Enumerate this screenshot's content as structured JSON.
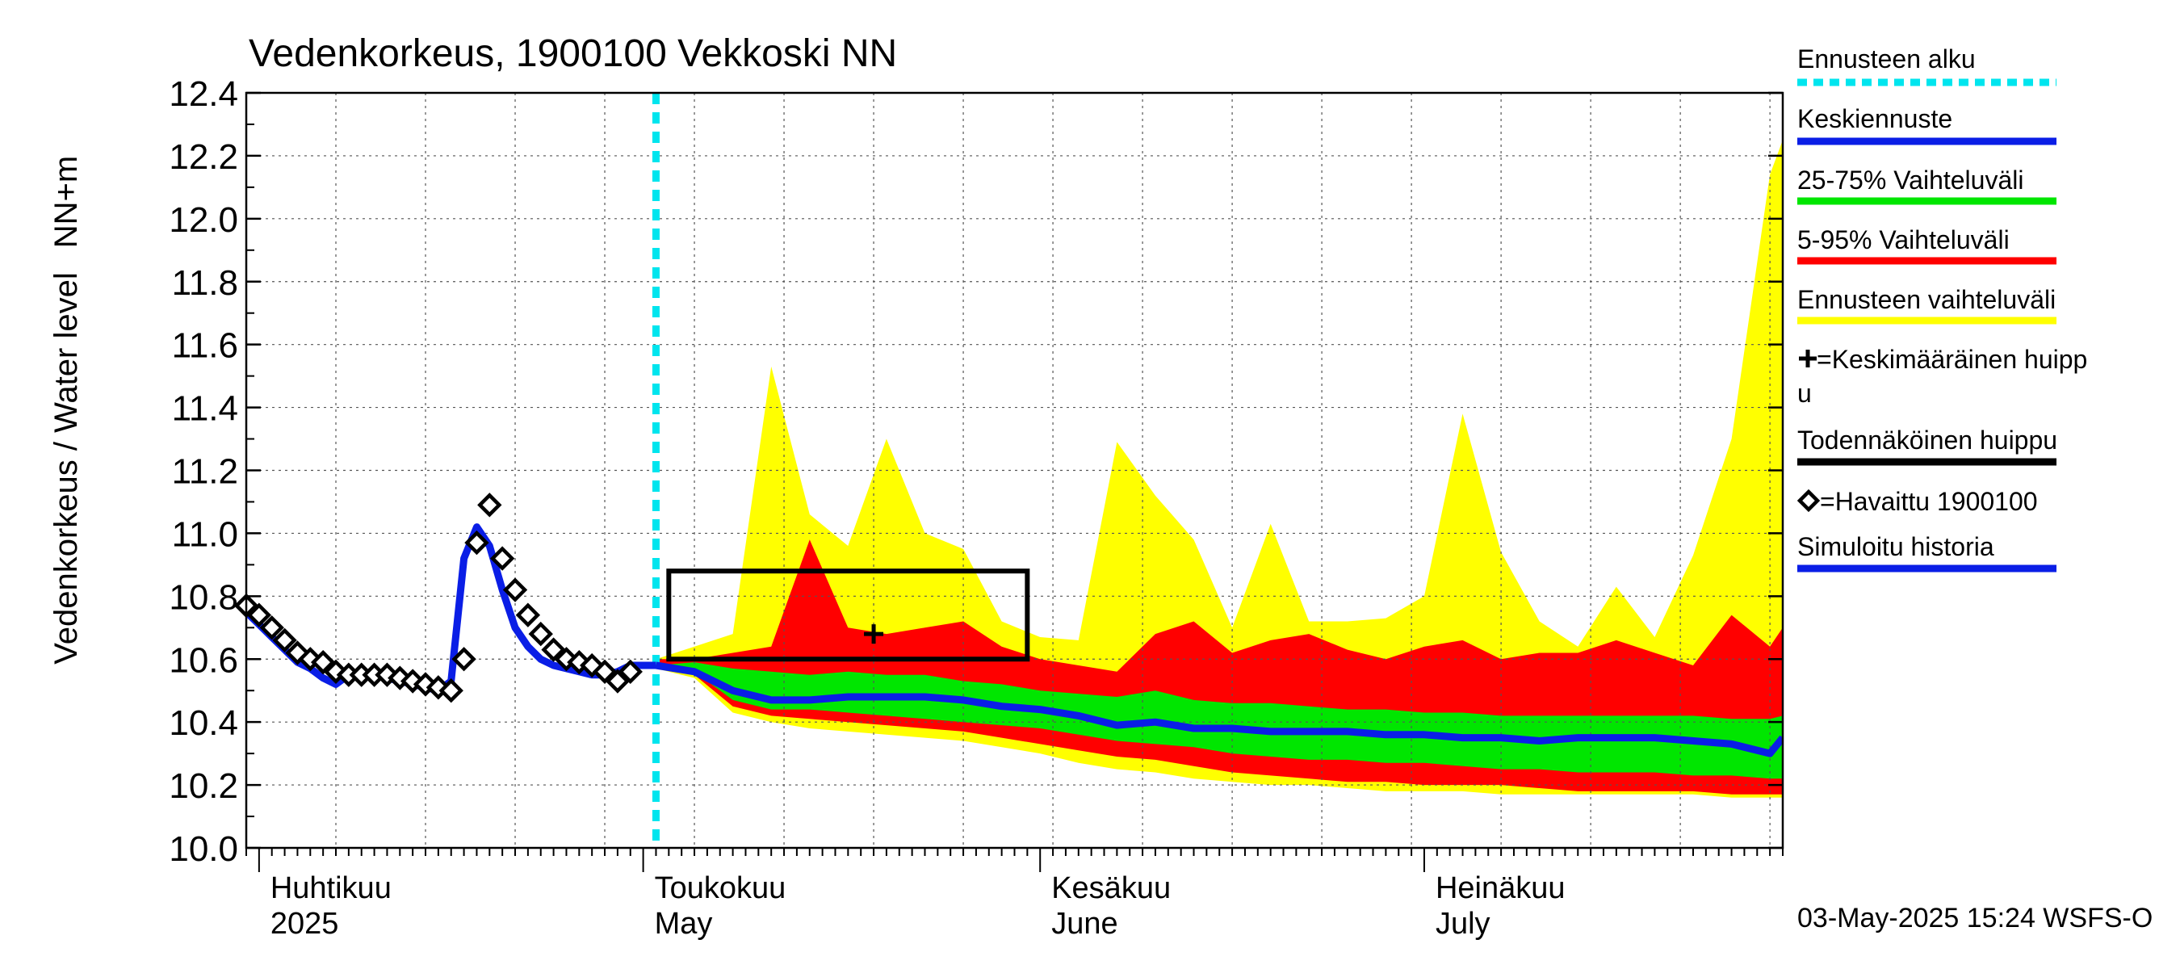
{
  "chart_data": {
    "type": "area",
    "title": "Vedenkorkeus, 1900100 Vekkoski NN",
    "ylabel_left": "Vedenkorkeus / Water level",
    "ylabel_right": "NN+m",
    "ylim": [
      10.0,
      12.4
    ],
    "yticks": [
      "10.0",
      "10.2",
      "10.4",
      "10.6",
      "10.8",
      "11.0",
      "11.2",
      "11.4",
      "11.6",
      "11.8",
      "12.0",
      "12.2",
      "12.4"
    ],
    "grid": true,
    "legend_position": "right",
    "month_labels": [
      {
        "fi": "Huhtikuu",
        "en": "2025",
        "date": "2025-04-01"
      },
      {
        "fi": "Toukokuu",
        "en": "May",
        "date": "2025-05-01"
      },
      {
        "fi": "Kesäkuu",
        "en": "June",
        "date": "2025-06-01"
      },
      {
        "fi": "Heinäkuu",
        "en": "July",
        "date": "2025-07-01"
      }
    ],
    "x_start": "2025-03-31",
    "x_end": "2025-07-29",
    "forecast_start": "2025-05-02",
    "timestamp": "03-May-2025 15:24 WSFS-O",
    "colors": {
      "forecast_start": "#00e5ee",
      "mean_forecast": "#0a1ee6",
      "band_25_75": "#00e600",
      "band_5_95": "#ff0000",
      "band_full": "#ffff00",
      "peak_box": "#000000",
      "simulated": "#0a1ee6",
      "observed": "#000000"
    },
    "legend": [
      {
        "label": "Ennusteen alku",
        "style": "dotted-cyan"
      },
      {
        "label": "Keskiennuste",
        "style": "line-blue"
      },
      {
        "label": "25-75% Vaihteluväli",
        "style": "line-green"
      },
      {
        "label": "5-95% Vaihteluväli",
        "style": "line-red"
      },
      {
        "label": "Ennusteen vaihteluväli",
        "style": "line-yellow"
      },
      {
        "label": "=Keskimääräinen huipp",
        "label2": "u",
        "style": "plus"
      },
      {
        "label": "Todennäköinen huippu",
        "style": "line-black"
      },
      {
        "label": "=Havaittu 1900100",
        "style": "diamond"
      },
      {
        "label": "Simuloitu historia",
        "style": "line-blue"
      }
    ],
    "simulated_history": [
      [
        "2025-03-31",
        10.75
      ],
      [
        "2025-04-01",
        10.71
      ],
      [
        "2025-04-02",
        10.67
      ],
      [
        "2025-04-03",
        10.63
      ],
      [
        "2025-04-04",
        10.59
      ],
      [
        "2025-04-05",
        10.57
      ],
      [
        "2025-04-06",
        10.54
      ],
      [
        "2025-04-07",
        10.52
      ],
      [
        "2025-04-08",
        10.55
      ],
      [
        "2025-04-09",
        10.55
      ],
      [
        "2025-04-10",
        10.55
      ],
      [
        "2025-04-11",
        10.54
      ],
      [
        "2025-04-12",
        10.53
      ],
      [
        "2025-04-13",
        10.52
      ],
      [
        "2025-04-14",
        10.51
      ],
      [
        "2025-04-15",
        10.5
      ],
      [
        "2025-04-16",
        10.53
      ],
      [
        "2025-04-17",
        10.92
      ],
      [
        "2025-04-18",
        11.02
      ],
      [
        "2025-04-19",
        10.96
      ],
      [
        "2025-04-20",
        10.82
      ],
      [
        "2025-04-21",
        10.7
      ],
      [
        "2025-04-22",
        10.64
      ],
      [
        "2025-04-23",
        10.6
      ],
      [
        "2025-04-24",
        10.58
      ],
      [
        "2025-04-25",
        10.57
      ],
      [
        "2025-04-26",
        10.56
      ],
      [
        "2025-04-27",
        10.55
      ],
      [
        "2025-04-28",
        10.55
      ],
      [
        "2025-04-29",
        10.56
      ],
      [
        "2025-04-30",
        10.58
      ],
      [
        "2025-05-01",
        10.58
      ],
      [
        "2025-05-02",
        10.58
      ]
    ],
    "observed": [
      [
        "2025-03-31",
        10.77
      ],
      [
        "2025-04-01",
        10.74
      ],
      [
        "2025-04-02",
        10.7
      ],
      [
        "2025-04-03",
        10.66
      ],
      [
        "2025-04-04",
        10.62
      ],
      [
        "2025-04-05",
        10.6
      ],
      [
        "2025-04-06",
        10.59
      ],
      [
        "2025-04-07",
        10.56
      ],
      [
        "2025-04-08",
        10.55
      ],
      [
        "2025-04-09",
        10.55
      ],
      [
        "2025-04-10",
        10.55
      ],
      [
        "2025-04-11",
        10.55
      ],
      [
        "2025-04-12",
        10.54
      ],
      [
        "2025-04-13",
        10.53
      ],
      [
        "2025-04-14",
        10.52
      ],
      [
        "2025-04-15",
        10.51
      ],
      [
        "2025-04-16",
        10.5
      ],
      [
        "2025-04-17",
        10.6
      ],
      [
        "2025-04-18",
        10.97
      ],
      [
        "2025-04-19",
        11.09
      ],
      [
        "2025-04-20",
        10.92
      ],
      [
        "2025-04-21",
        10.82
      ],
      [
        "2025-04-22",
        10.74
      ],
      [
        "2025-04-23",
        10.68
      ],
      [
        "2025-04-24",
        10.63
      ],
      [
        "2025-04-25",
        10.6
      ],
      [
        "2025-04-26",
        10.59
      ],
      [
        "2025-04-27",
        10.58
      ],
      [
        "2025-04-28",
        10.56
      ],
      [
        "2025-04-29",
        10.53
      ],
      [
        "2025-04-30",
        10.56
      ]
    ],
    "forecast_dates": [
      "2025-05-02",
      "2025-05-05",
      "2025-05-08",
      "2025-05-11",
      "2025-05-14",
      "2025-05-17",
      "2025-05-20",
      "2025-05-23",
      "2025-05-26",
      "2025-05-29",
      "2025-06-01",
      "2025-06-04",
      "2025-06-07",
      "2025-06-10",
      "2025-06-13",
      "2025-06-16",
      "2025-06-19",
      "2025-06-22",
      "2025-06-25",
      "2025-06-28",
      "2025-07-01",
      "2025-07-04",
      "2025-07-07",
      "2025-07-10",
      "2025-07-13",
      "2025-07-16",
      "2025-07-19",
      "2025-07-22",
      "2025-07-25",
      "2025-07-28",
      "2025-07-29"
    ],
    "mean_forecast": [
      10.58,
      10.56,
      10.5,
      10.47,
      10.47,
      10.48,
      10.48,
      10.48,
      10.47,
      10.45,
      10.44,
      10.42,
      10.39,
      10.4,
      10.38,
      10.38,
      10.37,
      10.37,
      10.37,
      10.36,
      10.36,
      10.35,
      10.35,
      10.34,
      10.35,
      10.35,
      10.35,
      10.34,
      10.33,
      10.3,
      10.35
    ],
    "band_25_75": [
      [
        10.58,
        10.58
      ],
      [
        10.56,
        10.59
      ],
      [
        10.47,
        10.57
      ],
      [
        10.44,
        10.56
      ],
      [
        10.44,
        10.55
      ],
      [
        10.43,
        10.56
      ],
      [
        10.42,
        10.55
      ],
      [
        10.41,
        10.55
      ],
      [
        10.4,
        10.53
      ],
      [
        10.39,
        10.52
      ],
      [
        10.38,
        10.5
      ],
      [
        10.36,
        10.49
      ],
      [
        10.34,
        10.48
      ],
      [
        10.33,
        10.5
      ],
      [
        10.32,
        10.47
      ],
      [
        10.3,
        10.46
      ],
      [
        10.29,
        10.46
      ],
      [
        10.28,
        10.45
      ],
      [
        10.28,
        10.44
      ],
      [
        10.27,
        10.44
      ],
      [
        10.27,
        10.43
      ],
      [
        10.26,
        10.43
      ],
      [
        10.25,
        10.42
      ],
      [
        10.25,
        10.42
      ],
      [
        10.24,
        10.42
      ],
      [
        10.24,
        10.42
      ],
      [
        10.24,
        10.42
      ],
      [
        10.23,
        10.42
      ],
      [
        10.23,
        10.41
      ],
      [
        10.22,
        10.41
      ],
      [
        10.22,
        10.42
      ]
    ],
    "band_5_95": [
      [
        10.57,
        10.6
      ],
      [
        10.55,
        10.6
      ],
      [
        10.45,
        10.62
      ],
      [
        10.42,
        10.64
      ],
      [
        10.41,
        10.98
      ],
      [
        10.4,
        10.7
      ],
      [
        10.39,
        10.68
      ],
      [
        10.38,
        10.7
      ],
      [
        10.37,
        10.72
      ],
      [
        10.35,
        10.64
      ],
      [
        10.33,
        10.6
      ],
      [
        10.31,
        10.58
      ],
      [
        10.29,
        10.56
      ],
      [
        10.28,
        10.68
      ],
      [
        10.26,
        10.72
      ],
      [
        10.24,
        10.62
      ],
      [
        10.23,
        10.66
      ],
      [
        10.22,
        10.68
      ],
      [
        10.21,
        10.63
      ],
      [
        10.21,
        10.6
      ],
      [
        10.2,
        10.64
      ],
      [
        10.2,
        10.66
      ],
      [
        10.2,
        10.6
      ],
      [
        10.19,
        10.62
      ],
      [
        10.18,
        10.62
      ],
      [
        10.18,
        10.66
      ],
      [
        10.18,
        10.62
      ],
      [
        10.18,
        10.58
      ],
      [
        10.17,
        10.74
      ],
      [
        10.17,
        10.64
      ],
      [
        10.17,
        10.7
      ]
    ],
    "band_full": [
      [
        10.57,
        10.6
      ],
      [
        10.54,
        10.64
      ],
      [
        10.43,
        10.68
      ],
      [
        10.4,
        11.53
      ],
      [
        10.38,
        11.06
      ],
      [
        10.37,
        10.96
      ],
      [
        10.36,
        11.3
      ],
      [
        10.35,
        11.0
      ],
      [
        10.34,
        10.95
      ],
      [
        10.32,
        10.72
      ],
      [
        10.3,
        10.67
      ],
      [
        10.27,
        10.66
      ],
      [
        10.25,
        11.29
      ],
      [
        10.24,
        11.12
      ],
      [
        10.22,
        10.98
      ],
      [
        10.21,
        10.7
      ],
      [
        10.2,
        11.03
      ],
      [
        10.2,
        10.72
      ],
      [
        10.19,
        10.72
      ],
      [
        10.18,
        10.73
      ],
      [
        10.18,
        10.8
      ],
      [
        10.18,
        11.38
      ],
      [
        10.17,
        10.94
      ],
      [
        10.17,
        10.72
      ],
      [
        10.17,
        10.64
      ],
      [
        10.17,
        10.83
      ],
      [
        10.17,
        10.67
      ],
      [
        10.17,
        10.93
      ],
      [
        10.16,
        11.3
      ],
      [
        10.16,
        12.14
      ],
      [
        10.16,
        12.25
      ]
    ],
    "mean_peak": {
      "date": "2025-05-19",
      "value": 10.68
    },
    "probable_peak_box": {
      "date_start": "2025-05-03",
      "date_end": "2025-05-31",
      "value_low": 10.6,
      "value_high": 10.88
    }
  }
}
